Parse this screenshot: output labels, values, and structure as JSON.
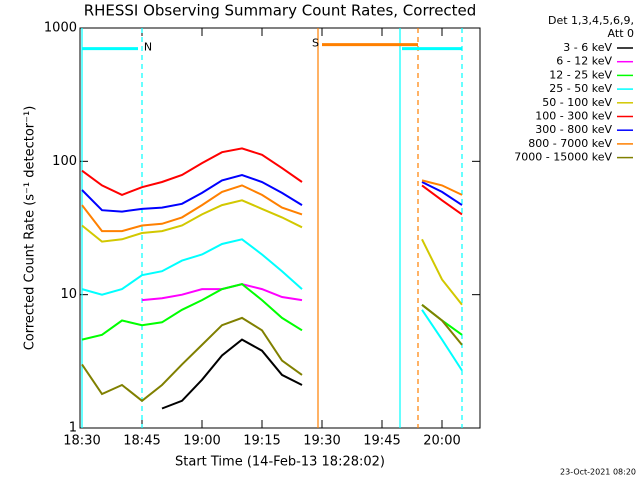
{
  "chart_data": {
    "type": "line",
    "title": "RHESSI Observing Summary Count Rates, Corrected",
    "x_label": "Start Time (14-Feb-13 18:28:02)",
    "y_label": "Corrected Count Rate (s⁻¹ detector⁻¹)",
    "footer": "23-Oct-2021 08:20",
    "legend_title": [
      "Det 1,3,4,5,6,9,",
      "Att 0"
    ],
    "legend": "outside-right",
    "ylog": true,
    "xlim": [
      "18:29:30",
      "20:09:30"
    ],
    "xticks": [
      "18:30",
      "18:45",
      "19:00",
      "19:15",
      "19:30",
      "19:45",
      "20:00"
    ],
    "ylim": [
      1,
      1000
    ],
    "yticks": [
      1,
      10,
      100,
      1000
    ],
    "x": [
      "18:30",
      "18:35",
      "18:40",
      "18:45",
      "18:50",
      "18:55",
      "19:00",
      "19:05",
      "19:10",
      "19:15",
      "19:20",
      "19:25",
      "19:40",
      "19:55",
      "20:00",
      "20:05"
    ],
    "series": [
      {
        "name": "3 - 6 keV",
        "color": "#000000",
        "values": [
          null,
          null,
          null,
          null,
          1.4,
          1.6,
          2.3,
          3.5,
          4.6,
          3.8,
          2.5,
          2.1,
          null,
          null,
          null,
          null
        ]
      },
      {
        "name": "6 - 12 keV",
        "color": "#ff00ff",
        "values": [
          null,
          null,
          null,
          9.1,
          9.4,
          10,
          11,
          11,
          12,
          11,
          9.6,
          9.1,
          null,
          null,
          null,
          null
        ]
      },
      {
        "name": "12 - 25 keV",
        "color": "#00ff00",
        "values": [
          4.6,
          5,
          6.4,
          5.9,
          6.2,
          7.7,
          9.1,
          11,
          12,
          9.1,
          6.7,
          5.4,
          null,
          8.4,
          6.4,
          5
        ]
      },
      {
        "name": "25 - 50 keV",
        "color": "#00ffff",
        "values": [
          11,
          10,
          11,
          14,
          15,
          18,
          20,
          24,
          26,
          20,
          15,
          11,
          null,
          7.7,
          4.6,
          2.7
        ]
      },
      {
        "name": "50 - 100 keV",
        "color": "#d2c800",
        "values": [
          33,
          25,
          26,
          29,
          30,
          33,
          40,
          47,
          51,
          44,
          38,
          32,
          null,
          26,
          13,
          8.4
        ]
      },
      {
        "name": "100 - 300 keV",
        "color": "#ff0000",
        "values": [
          85,
          66,
          56,
          64,
          70,
          79,
          97,
          117,
          125,
          112,
          89,
          70,
          null,
          66,
          51,
          40
        ]
      },
      {
        "name": "300 - 800 keV",
        "color": "#0000ff",
        "values": [
          61,
          43,
          42,
          44,
          45,
          48,
          58,
          72,
          79,
          70,
          58,
          47,
          null,
          70,
          59,
          47
        ]
      },
      {
        "name": "800 - 7000 keV",
        "color": "#ff8000",
        "values": [
          47,
          30,
          30,
          33,
          34,
          38,
          47,
          59,
          66,
          56,
          45,
          40,
          null,
          72,
          66,
          56
        ]
      },
      {
        "name": "7000 - 15000 keV",
        "color": "#808000",
        "values": [
          3,
          1.8,
          2.1,
          1.6,
          2.1,
          3,
          4.2,
          5.9,
          6.7,
          5.4,
          3.2,
          2.5,
          null,
          8.4,
          6.4,
          4.2
        ]
      }
    ],
    "markers": [
      {
        "x": "18:30",
        "color": "#00ffff",
        "dashed": false
      },
      {
        "x": "18:45",
        "color": "#00ffff",
        "dashed": true
      },
      {
        "x": "19:29",
        "color": "#ff8000",
        "dashed": false
      },
      {
        "x": "19:49:30",
        "color": "#00ffff",
        "dashed": false
      },
      {
        "x": "19:54",
        "color": "#ff8000",
        "dashed": true
      },
      {
        "x": "20:05",
        "color": "#00ffff",
        "dashed": true
      }
    ],
    "bars": [
      {
        "start": "18:30",
        "end": "18:44",
        "y": 700,
        "color": "#00ffff",
        "label": "N",
        "label_side": "end"
      },
      {
        "start": "19:30",
        "end": "19:54",
        "y": 750,
        "color": "#ff8000",
        "label": "S",
        "label_side": "start"
      },
      {
        "start": "19:50",
        "end": "20:05",
        "y": 700,
        "color": "#00ffff"
      }
    ]
  }
}
